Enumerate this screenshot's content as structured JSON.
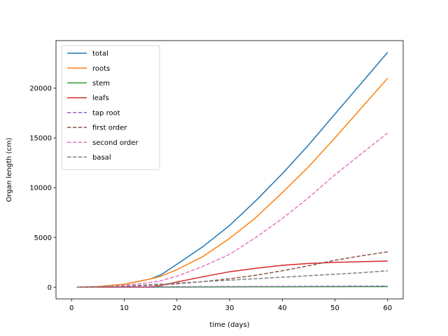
{
  "chart_data": {
    "type": "line",
    "title": "",
    "xlabel": "time (days)",
    "ylabel": "Organ length (cm)",
    "xlim": [
      -2.95,
      62.95
    ],
    "ylim": [
      -1180,
      24780
    ],
    "xticks": [
      0,
      10,
      20,
      30,
      40,
      50,
      60
    ],
    "yticks": [
      0,
      5000,
      10000,
      15000,
      20000
    ],
    "legend_position": "top-left",
    "grid": false,
    "x": [
      1,
      5,
      10,
      15,
      17,
      20,
      25,
      30,
      35,
      40,
      45,
      50,
      55,
      60
    ],
    "series": [
      {
        "name": "total",
        "color": "#1f77b4",
        "dashed": false,
        "values": [
          0,
          60,
          290,
          830,
          1250,
          2300,
          4100,
          6200,
          8700,
          11400,
          14300,
          17400,
          20500,
          23600
        ]
      },
      {
        "name": "roots",
        "color": "#ff7f0e",
        "dashed": false,
        "values": [
          0,
          60,
          290,
          830,
          1100,
          1750,
          3100,
          4900,
          7000,
          9500,
          12100,
          15000,
          18000,
          21000
        ]
      },
      {
        "name": "stem",
        "color": "#2ca02c",
        "dashed": false,
        "values": [
          0,
          0,
          0,
          0,
          5,
          10,
          20,
          25,
          30,
          35,
          40,
          45,
          50,
          50
        ]
      },
      {
        "name": "leafs",
        "color": "#d62728",
        "dashed": false,
        "values": [
          0,
          0,
          0,
          0,
          170,
          520,
          1050,
          1550,
          1900,
          2200,
          2380,
          2500,
          2560,
          2630
        ]
      },
      {
        "name": "tap root",
        "color": "#9467bd",
        "dashed": true,
        "values": [
          0,
          10,
          20,
          30,
          35,
          40,
          50,
          60,
          65,
          75,
          85,
          95,
          105,
          110
        ]
      },
      {
        "name": "first order",
        "color": "#8c564b",
        "dashed": true,
        "values": [
          0,
          20,
          80,
          190,
          240,
          340,
          560,
          850,
          1200,
          1650,
          2150,
          2700,
          3150,
          3550
        ]
      },
      {
        "name": "second order",
        "color": "#e377c2",
        "dashed": true,
        "values": [
          0,
          40,
          170,
          480,
          650,
          1100,
          2100,
          3300,
          5000,
          6900,
          9000,
          11300,
          13400,
          15500
        ]
      },
      {
        "name": "basal",
        "color": "#7f7f7f",
        "dashed": true,
        "values": [
          0,
          30,
          100,
          250,
          300,
          400,
          560,
          700,
          850,
          1000,
          1150,
          1300,
          1450,
          1650
        ]
      }
    ]
  }
}
